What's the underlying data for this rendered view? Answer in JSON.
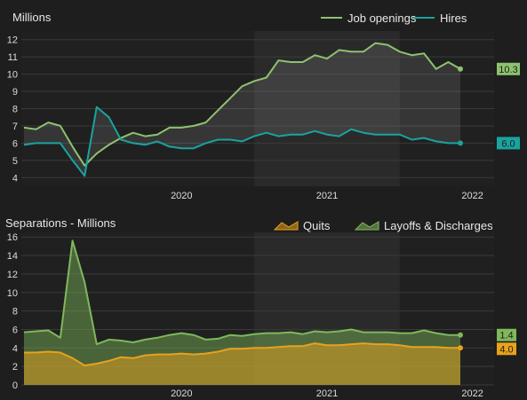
{
  "chart_data": [
    {
      "type": "line",
      "title": "Millions",
      "ylim": [
        3.5,
        12.5
      ],
      "yticks": [
        4,
        5,
        6,
        7,
        8,
        9,
        10,
        11,
        12
      ],
      "x_start": "2019-06",
      "xticks": [
        "2020",
        "2021",
        "2022"
      ],
      "shaded_year": "2021",
      "legend_position": "top-right",
      "series": [
        {
          "name": "Job openings",
          "color": "#8dc26f",
          "last_label": "10.3",
          "values": [
            6.9,
            6.8,
            7.2,
            7.0,
            5.8,
            4.7,
            5.4,
            5.9,
            6.3,
            6.6,
            6.4,
            6.5,
            6.9,
            6.9,
            7.0,
            7.2,
            7.9,
            8.6,
            9.3,
            9.6,
            9.8,
            10.8,
            10.7,
            10.7,
            11.1,
            10.9,
            11.4,
            11.3,
            11.3,
            11.8,
            11.7,
            11.3,
            11.1,
            11.2,
            10.3,
            10.7,
            10.3
          ]
        },
        {
          "name": "Hires",
          "color": "#1aa3a0",
          "last_label": "6.0",
          "values": [
            5.9,
            6.0,
            6.0,
            6.0,
            5.0,
            4.1,
            8.1,
            7.5,
            6.2,
            6.0,
            5.9,
            6.1,
            5.8,
            5.7,
            5.7,
            6.0,
            6.2,
            6.2,
            6.1,
            6.4,
            6.6,
            6.4,
            6.5,
            6.5,
            6.7,
            6.5,
            6.4,
            6.8,
            6.6,
            6.5,
            6.5,
            6.5,
            6.2,
            6.3,
            6.1,
            6.0,
            6.0
          ]
        }
      ]
    },
    {
      "type": "area",
      "title": "Separations - Millions",
      "ylim": [
        0,
        16.5
      ],
      "yticks": [
        0,
        2,
        4,
        6,
        8,
        10,
        12,
        14,
        16
      ],
      "x_start": "2019-06",
      "xticks": [
        "2020",
        "2021",
        "2022"
      ],
      "shaded_year": "2021",
      "legend_position": "top-right",
      "series": [
        {
          "name": "Quits",
          "color": "#e8a21c",
          "last_label": "4.0",
          "values": [
            3.5,
            3.5,
            3.6,
            3.5,
            2.9,
            2.1,
            2.3,
            2.6,
            3.0,
            2.9,
            3.2,
            3.3,
            3.3,
            3.4,
            3.3,
            3.4,
            3.6,
            3.9,
            3.9,
            4.0,
            4.0,
            4.1,
            4.2,
            4.2,
            4.5,
            4.3,
            4.3,
            4.4,
            4.5,
            4.4,
            4.4,
            4.3,
            4.1,
            4.1,
            4.1,
            4.0,
            4.0
          ]
        },
        {
          "name": "Layoffs & Discharges",
          "color": "#7fb85c",
          "last_label": "1.4",
          "values": [
            2.2,
            2.3,
            2.3,
            1.6,
            12.7,
            9.0,
            2.1,
            2.3,
            1.8,
            1.7,
            1.7,
            1.8,
            2.1,
            2.2,
            2.1,
            1.5,
            1.4,
            1.5,
            1.4,
            1.5,
            1.6,
            1.5,
            1.5,
            1.3,
            1.3,
            1.4,
            1.5,
            1.6,
            1.2,
            1.3,
            1.3,
            1.3,
            1.5,
            1.8,
            1.5,
            1.4,
            1.4
          ]
        }
      ]
    }
  ]
}
